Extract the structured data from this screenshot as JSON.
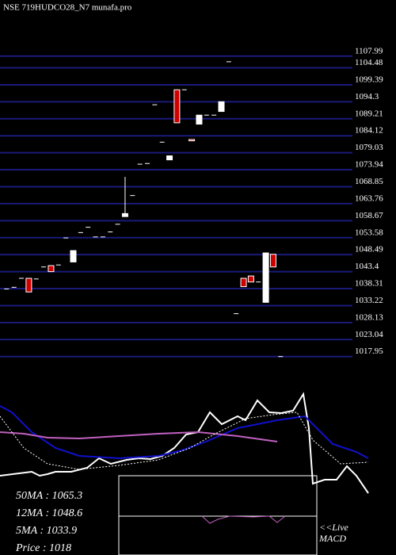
{
  "chart_data": [
    {
      "type": "candlestick",
      "title": "NSE 719HUDCO28_N7 munafa.pro",
      "open": [
        1038.2,
        1038.7,
        1041.4,
        1041.4,
        1041.2,
        1044.8,
        1045.2,
        1045.4,
        1053.5,
        1046.3,
        1055.1,
        1056.7,
        1053.8,
        1053.8,
        1055.3,
        1057.6,
        1059.9,
        1066.2,
        1075.6,
        1075.8,
        1093.4,
        1082.2,
        1076.9,
        1097.9,
        1097.9,
        1083.0,
        1087.6,
        1090.3,
        1090.3,
        1091.4,
        1106.3,
        1030.8,
        1041.4,
        1042.1,
        1040.3,
        1034.2,
        1048.6,
        1017.95
      ],
      "close": [
        1038.2,
        1038.7,
        1041.4,
        1037.3,
        1041.2,
        1044.8,
        1043.4,
        1045.4,
        1053.5,
        1049.7,
        1055.1,
        1056.7,
        1053.8,
        1053.8,
        1055.3,
        1057.6,
        1060.8,
        1066.2,
        1075.6,
        1075.8,
        1093.4,
        1082.2,
        1078.1,
        1088.0,
        1097.9,
        1082.6,
        1090.3,
        1090.3,
        1090.3,
        1094.3,
        1106.3,
        1030.8,
        1038.9,
        1040.3,
        1040.3,
        1049.0,
        1044.8,
        1017.95
      ],
      "high": [
        null,
        null,
        null,
        null,
        null,
        null,
        null,
        null,
        null,
        null,
        null,
        null,
        null,
        null,
        null,
        null,
        1071.8,
        null,
        null,
        null,
        null,
        null,
        null,
        null,
        null,
        null,
        null,
        null,
        null,
        null,
        null,
        null,
        null,
        null,
        null,
        null,
        null,
        null
      ],
      "ylim": [
        1006.0,
        1124.8
      ],
      "yticks": [
        1107.99,
        1104.48,
        1099.39,
        1094.3,
        1089.21,
        1084.12,
        1079.03,
        1073.94,
        1068.85,
        1063.76,
        1058.67,
        1053.58,
        1048.49,
        1043.4,
        1038.31,
        1033.22,
        1028.13,
        1023.04,
        1017.95
      ]
    },
    {
      "type": "line",
      "xlim": [
        0,
        465
      ],
      "ylim": [
        10,
        210
      ],
      "series": [
        {
          "color": "#ffffff",
          "dash": false,
          "x": [
            0,
            40,
            50,
            60,
            70,
            90,
            110,
            125,
            140,
            160,
            175,
            190,
            205,
            220,
            235,
            250,
            265,
            280,
            300,
            310,
            325,
            340,
            355,
            370,
            383,
            390,
            395,
            410,
            425,
            438,
            450,
            465
          ],
          "values": [
            100,
            105,
            100,
            102,
            105,
            105,
            110,
            122,
            115,
            120,
            122,
            121,
            125,
            135,
            152,
            155,
            180,
            165,
            175,
            170,
            195,
            180,
            179,
            182,
            203,
            160,
            90,
            95,
            95,
            112,
            100,
            78
          ]
        },
        {
          "color": "#1010cc",
          "dash": false,
          "x": [
            0,
            15,
            40,
            70,
            100,
            150,
            200,
            230,
            260,
            300,
            350,
            385,
            395,
            420,
            450,
            465
          ],
          "values": [
            188,
            180,
            155,
            135,
            125,
            122,
            125,
            132,
            143,
            160,
            170,
            175,
            165,
            140,
            130,
            122
          ]
        },
        {
          "color": "#c060c0",
          "dash": false,
          "x": [
            0,
            30,
            60,
            100,
            150,
            200,
            250,
            300,
            350
          ],
          "values": [
            155,
            153,
            148,
            147,
            150,
            153,
            155,
            150,
            143
          ]
        },
        {
          "color": "#ffffff",
          "dash": true,
          "x": [
            0,
            30,
            60,
            100,
            150,
            200,
            240,
            270,
            310,
            345,
            375,
            395,
            430,
            465
          ],
          "values": [
            175,
            135,
            115,
            108,
            113,
            120,
            135,
            152,
            172,
            177,
            180,
            145,
            115,
            117
          ]
        }
      ]
    },
    {
      "type": "text",
      "labels": [
        {
          "label": "50MA",
          "value": 1065.3
        },
        {
          "label": "12MA",
          "value": 1048.6
        },
        {
          "label": "5MA",
          "value": 1033.9
        },
        {
          "label": "Price ",
          "value": 1018
        }
      ],
      "live": "<<Live",
      "macd": "MACD"
    }
  ]
}
